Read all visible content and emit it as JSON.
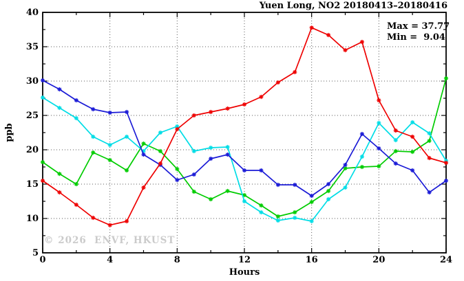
{
  "chart": {
    "title": "Yuen Long, NO2 20180413–20180416",
    "stats": {
      "max_label": "Max = 37.77",
      "min_label": "Min =  9.04"
    },
    "watermark": "© 2026  ENVF, HKUST",
    "xlabel": "Hours",
    "ylabel": "ppb"
  },
  "chart_data": {
    "type": "line",
    "title": "Yuen Long, NO2 20180413–20180416",
    "xlabel": "Hours",
    "ylabel": "ppb",
    "xlim": [
      0,
      24
    ],
    "ylim": [
      5,
      40
    ],
    "grid": true,
    "legend_position": "none",
    "x_major_ticks": [
      0,
      4,
      8,
      12,
      16,
      20,
      24
    ],
    "x_minor_ticks": [
      2,
      6,
      10,
      14,
      18,
      22
    ],
    "y_major_ticks": [
      5,
      10,
      15,
      20,
      25,
      30,
      35,
      40
    ],
    "y_minor_ticks": [
      7.5,
      12.5,
      17.5,
      22.5,
      27.5,
      32.5,
      37.5
    ],
    "grid_x": [
      4,
      8,
      12,
      16,
      20
    ],
    "grid_y": [
      10,
      15,
      20,
      25,
      30,
      35
    ],
    "annotations": {
      "max": 37.77,
      "min": 9.04
    },
    "x": [
      0,
      1,
      2,
      3,
      4,
      5,
      6,
      7,
      8,
      9,
      10,
      11,
      12,
      13,
      14,
      15,
      16,
      17,
      18,
      19,
      20,
      21,
      22,
      23,
      24
    ],
    "series": [
      {
        "name": "green-line",
        "color": "#00cc00",
        "values": [
          18.2,
          16.5,
          15.0,
          19.6,
          18.5,
          17.0,
          20.9,
          19.8,
          17.2,
          13.9,
          12.8,
          14.0,
          13.4,
          11.9,
          10.3,
          10.9,
          12.4,
          14.0,
          17.3,
          17.5,
          17.6,
          19.8,
          19.7,
          21.3,
          30.4
        ]
      },
      {
        "name": "cyan-line",
        "color": "#00dde6",
        "values": [
          27.6,
          26.1,
          24.6,
          21.9,
          20.7,
          21.9,
          19.8,
          22.5,
          23.4,
          19.8,
          20.3,
          20.4,
          12.5,
          10.9,
          9.7,
          10.1,
          9.6,
          12.8,
          14.5,
          19.0,
          23.9,
          21.4,
          24.0,
          22.4,
          18.4
        ]
      },
      {
        "name": "blue-line",
        "color": "#1a1ad6",
        "values": [
          30.1,
          28.8,
          27.2,
          25.9,
          25.4,
          25.5,
          19.3,
          17.8,
          15.6,
          16.4,
          18.7,
          19.3,
          17.0,
          17.0,
          14.9,
          14.9,
          13.3,
          15.0,
          17.8,
          22.3,
          20.2,
          18.0,
          17.0,
          13.8,
          15.5
        ]
      },
      {
        "name": "red-line",
        "color": "#ee0000",
        "values": [
          15.5,
          13.8,
          12.0,
          10.1,
          9.04,
          9.6,
          14.5,
          18.0,
          23.0,
          25.0,
          25.5,
          26.0,
          26.6,
          27.7,
          29.8,
          31.3,
          37.77,
          36.7,
          34.5,
          35.7,
          27.2,
          22.8,
          21.9,
          18.8,
          18.1
        ]
      }
    ]
  },
  "layout_note": ""
}
